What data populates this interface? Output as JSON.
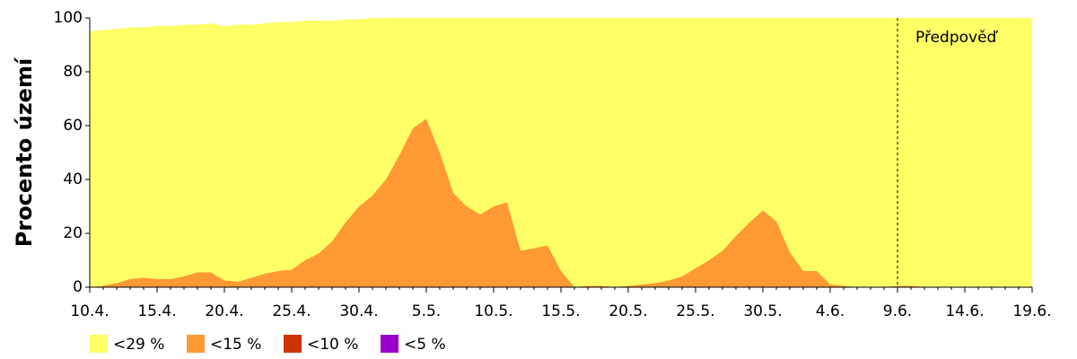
{
  "chart_data": {
    "type": "area",
    "y_axis_label": "Procento území",
    "annotation": "Předpověď",
    "forecast_start": "9.6.",
    "ylim": [
      0,
      100
    ],
    "yticks": [
      0,
      20,
      40,
      60,
      80,
      100
    ],
    "categories": [
      "10.4.",
      null,
      null,
      null,
      null,
      "15.4.",
      null,
      null,
      null,
      null,
      "20.4.",
      null,
      null,
      null,
      null,
      "25.4.",
      null,
      null,
      null,
      null,
      "30.4.",
      null,
      null,
      null,
      null,
      "5.5.",
      null,
      null,
      null,
      null,
      "10.5.",
      null,
      null,
      null,
      null,
      "15.5.",
      null,
      null,
      null,
      null,
      "20.5.",
      null,
      null,
      null,
      null,
      "25.5.",
      null,
      null,
      null,
      null,
      "30.5.",
      null,
      null,
      null,
      null,
      "4.6.",
      null,
      null,
      null,
      null,
      "9.6.",
      null,
      null,
      null,
      null,
      "14.6.",
      null,
      null,
      null,
      null,
      "19.6."
    ],
    "series": [
      {
        "name": "<29 %",
        "color": "#ffff66",
        "values": [
          95,
          95.5,
          96,
          96.5,
          96.5,
          97,
          97,
          97.5,
          97.5,
          98,
          97,
          97.5,
          97.5,
          98,
          98.5,
          98.5,
          99,
          99,
          99,
          99.5,
          99.5,
          100,
          100,
          100,
          100,
          100,
          100,
          100,
          100,
          100,
          100,
          100,
          100,
          100,
          100,
          100,
          100,
          100,
          100,
          100,
          100,
          100,
          100,
          100,
          100,
          100,
          100,
          100,
          100,
          100,
          100,
          100,
          100,
          100,
          100,
          100,
          100,
          100,
          100,
          100,
          100,
          100,
          100,
          100,
          100,
          100,
          100,
          100,
          100,
          100,
          100
        ]
      },
      {
        "name": "<15 %",
        "color": "#ff9933",
        "values": [
          0,
          0.5,
          1.5,
          3,
          3.5,
          3,
          3,
          4,
          5.5,
          5.5,
          2.5,
          2,
          3.5,
          5,
          6,
          6.5,
          10,
          12.5,
          17,
          24,
          30,
          34,
          40,
          49,
          59,
          62.5,
          50,
          35,
          30,
          27,
          30,
          31.5,
          13.5,
          14.5,
          15.5,
          6,
          0,
          0.5,
          0.5,
          0,
          0.5,
          1,
          1.5,
          2.5,
          4,
          7,
          10,
          13.5,
          19,
          24,
          28.5,
          24.5,
          13,
          6,
          6,
          1,
          0.5,
          0,
          0,
          0,
          0.5,
          0.5,
          0,
          0,
          0,
          0,
          0,
          0,
          0,
          0,
          0
        ]
      },
      {
        "name": "<10 %",
        "color": "#cc3300",
        "values": [
          0,
          0,
          0,
          0,
          0,
          0,
          0,
          0,
          0,
          0,
          0,
          0,
          0,
          0,
          0,
          0,
          0,
          0,
          0,
          0,
          0,
          0,
          0,
          0,
          0,
          0,
          0,
          0,
          0,
          0,
          0,
          0,
          0,
          0,
          0,
          0,
          0,
          0,
          0,
          0,
          0,
          0,
          0,
          0,
          0,
          0,
          0,
          0,
          0,
          0,
          0,
          0,
          0,
          0,
          0,
          0,
          0,
          0,
          0,
          0,
          0,
          0,
          0,
          0,
          0,
          0,
          0,
          0,
          0,
          0,
          0
        ]
      },
      {
        "name": "<5 %",
        "color": "#9900cc",
        "values": [
          0,
          0,
          0,
          0,
          0,
          0,
          0,
          0,
          0,
          0,
          0,
          0,
          0,
          0,
          0,
          0,
          0,
          0,
          0,
          0,
          0,
          0,
          0,
          0,
          0,
          0,
          0,
          0,
          0,
          0,
          0,
          0,
          0,
          0,
          0,
          0,
          0,
          0,
          0,
          0,
          0,
          0,
          0,
          0,
          0,
          0,
          0,
          0,
          0,
          0,
          0,
          0,
          0,
          0,
          0,
          0,
          0,
          0,
          0,
          0,
          0,
          0,
          0,
          0,
          0,
          0,
          0,
          0,
          0,
          0,
          0
        ]
      }
    ]
  }
}
